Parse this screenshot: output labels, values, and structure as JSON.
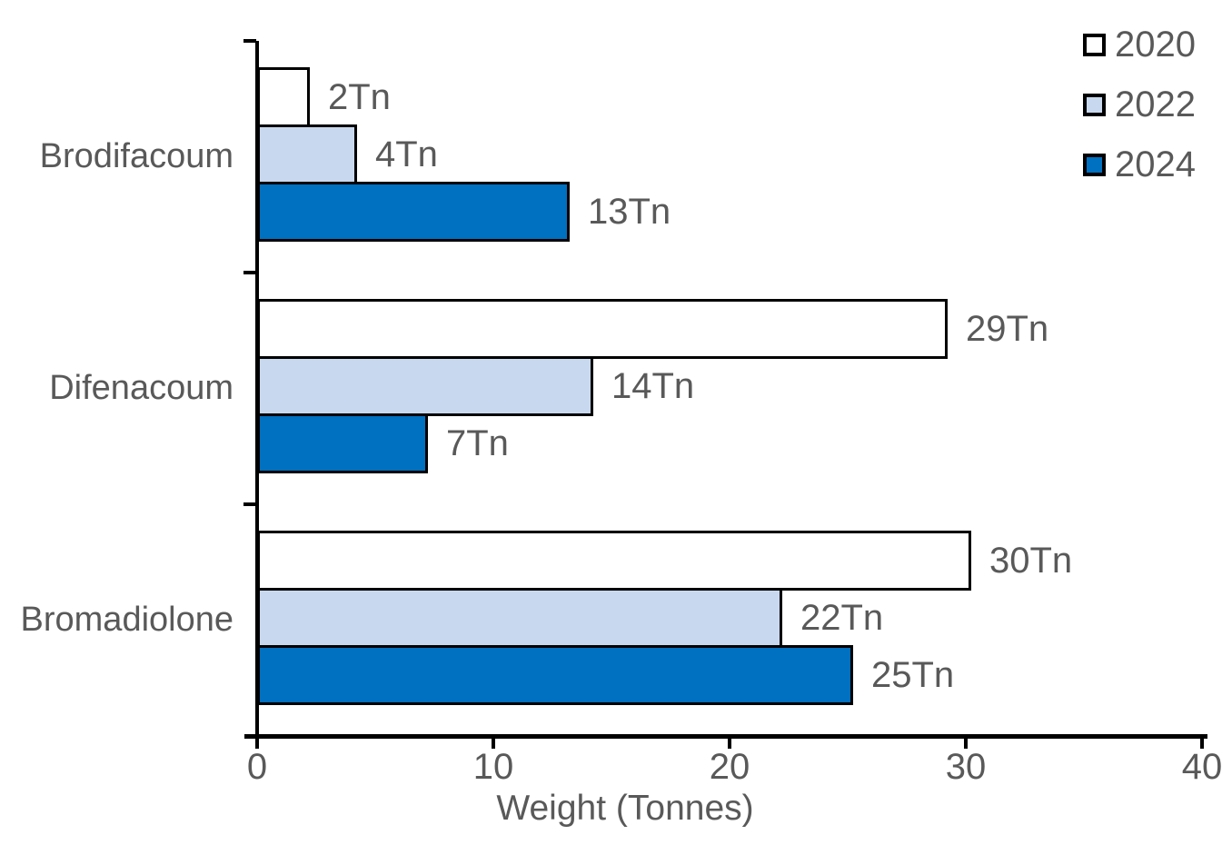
{
  "chart_data": {
    "type": "bar",
    "orientation": "horizontal",
    "title": "",
    "xlabel": "Weight (Tonnes)",
    "ylabel": "",
    "categories": [
      "Brodifacoum",
      "Difenacoum",
      "Bromadiolone"
    ],
    "series": [
      {
        "name": "2020",
        "color": "#ffffff",
        "values": [
          2,
          29,
          30
        ],
        "labels": [
          "2Tn",
          "29Tn",
          "30Tn"
        ]
      },
      {
        "name": "2022",
        "color": "#c8d8ee",
        "values": [
          4,
          14,
          22
        ],
        "labels": [
          "4Tn",
          "14Tn",
          "22Tn"
        ]
      },
      {
        "name": "2024",
        "color": "#0070c0",
        "values": [
          13,
          7,
          25
        ],
        "labels": [
          "13Tn",
          "7Tn",
          "25Tn"
        ]
      }
    ],
    "unit_suffix": "Tn",
    "xlim": [
      0,
      40
    ],
    "x_ticks": [
      "0",
      "10",
      "20",
      "30",
      "40"
    ],
    "x_tick_values": [
      0,
      10,
      20,
      30,
      40
    ],
    "grid": false,
    "legend_position": "top-right",
    "bar_border_color": "#000000",
    "axis_color": "#000000",
    "text_color": "#595959"
  }
}
